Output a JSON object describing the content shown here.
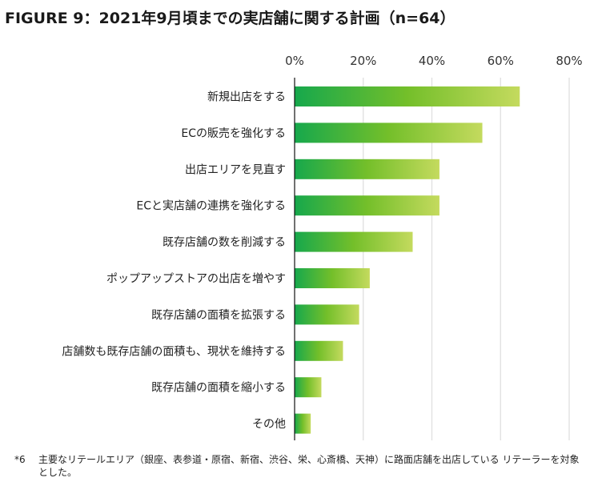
{
  "title": "FIGURE 9：2021年9月頃までの実店舗に関する計画（n=64）",
  "chart_data": {
    "type": "bar",
    "orientation": "horizontal",
    "title": "FIGURE 9：2021年9月頃までの実店舗に関する計画（n=64）",
    "xlabel": "",
    "ylabel": "",
    "xlim": [
      0,
      80
    ],
    "x_ticks": [
      0,
      20,
      40,
      60,
      80
    ],
    "x_tick_labels": [
      "0%",
      "20%",
      "40%",
      "60%",
      "80%"
    ],
    "x_axis_position": "top",
    "grid": true,
    "categories": [
      "新規出店をする",
      "ECの販売を強化する",
      "出店エリアを見直す",
      "ECと実店舗の連携を強化する",
      "既存店舗の数を削減する",
      "ポップアップストアの出店を増やす",
      "既存店舗の面積を拡張する",
      "店舗数も既存店舗の面積も、現状を維持する",
      "既存店舗の面積を縮小する",
      "その他"
    ],
    "values": [
      65.6,
      54.7,
      42.2,
      42.2,
      34.4,
      21.9,
      18.8,
      14.1,
      7.8,
      4.7
    ],
    "unit": "%",
    "colors": {
      "gradient_start": "#16a84c",
      "gradient_mid": "#74bf2a",
      "gradient_end": "#c4da5e",
      "grid": "#dddddd",
      "axis": "#111111"
    }
  },
  "footnote": {
    "mark": "*6",
    "text": "主要なリテールエリア（銀座、表参道・原宿、新宿、渋谷、栄、心斎橋、天神）に路面店舗を出店している リテーラーを対象とした。"
  }
}
